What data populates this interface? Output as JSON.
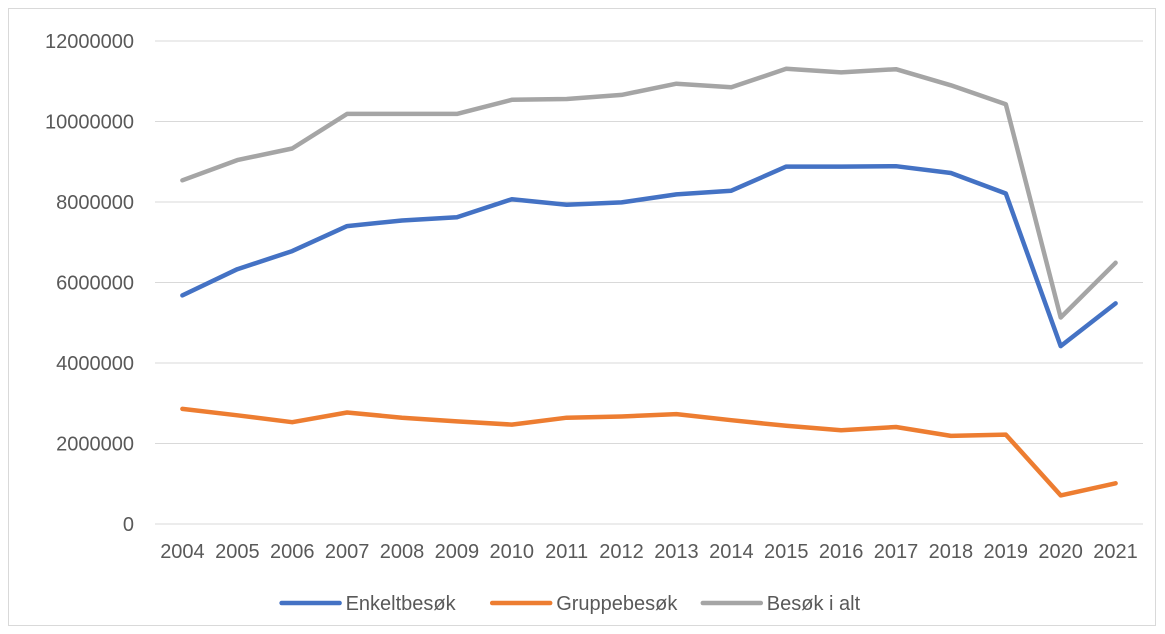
{
  "chart_data": {
    "type": "line",
    "title": "",
    "xlabel": "",
    "ylabel": "",
    "x": [
      "2004",
      "2005",
      "2006",
      "2007",
      "2008",
      "2009",
      "2010",
      "2011",
      "2012",
      "2013",
      "2014",
      "2015",
      "2016",
      "2017",
      "2018",
      "2019",
      "2020",
      "2021"
    ],
    "ylim": [
      0,
      12000000
    ],
    "yticks": [
      "0",
      "2000000",
      "4000000",
      "6000000",
      "8000000",
      "10000000",
      "12000000"
    ],
    "grid": true,
    "legend_position": "bottom",
    "series": [
      {
        "name": "Enkeltbesøk",
        "color": "#4472c4",
        "values": [
          5680000,
          6330000,
          6780000,
          7400000,
          7540000,
          7620000,
          8070000,
          7930000,
          7990000,
          8190000,
          8280000,
          8880000,
          8880000,
          8890000,
          8720000,
          8210000,
          4420000,
          5480000
        ]
      },
      {
        "name": "Gruppebesøk",
        "color": "#ed7d31",
        "values": [
          2860000,
          2700000,
          2530000,
          2770000,
          2640000,
          2550000,
          2470000,
          2640000,
          2670000,
          2730000,
          2580000,
          2440000,
          2330000,
          2410000,
          2190000,
          2220000,
          710000,
          1010000
        ]
      },
      {
        "name": "Besøk i alt",
        "color": "#a5a5a5",
        "values": [
          8540000,
          9040000,
          9330000,
          10190000,
          10190000,
          10190000,
          10540000,
          10560000,
          10660000,
          10940000,
          10850000,
          11310000,
          11220000,
          11300000,
          10900000,
          10430000,
          5130000,
          6490000
        ]
      }
    ]
  }
}
